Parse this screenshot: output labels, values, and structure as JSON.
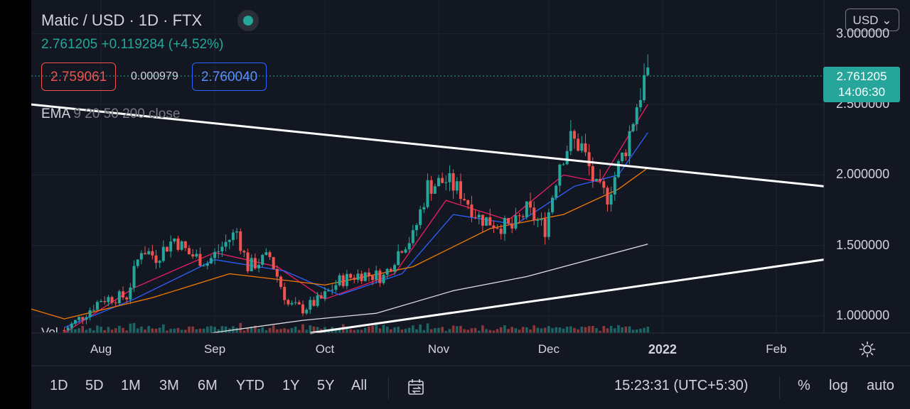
{
  "header": {
    "symbol": "Matic / USD · 1D · FTX",
    "price_line": "2.761205 +0.119284 (+4.52%)",
    "sell_price": "2.759061",
    "spread": "0.000979",
    "buy_price": "2.760040",
    "indicator_name": "EMA",
    "indicator_params": "9 20 50 200 close",
    "volume_label": "Vol",
    "currency": "USD"
  },
  "price_tag": {
    "price": "2.761205",
    "countdown": "14:06:30"
  },
  "toolbar": {
    "ranges": [
      "1D",
      "5D",
      "1M",
      "3M",
      "6M",
      "YTD",
      "1Y",
      "5Y",
      "All"
    ],
    "time": "15:23:31 (UTC+5:30)",
    "percent": "%",
    "log": "log",
    "auto": "auto"
  },
  "colors": {
    "background": "#131722",
    "up": "#26a69a",
    "down": "#ef5350",
    "ema9": "#e91e63",
    "ema20": "#2962ff",
    "ema50": "#f57c00",
    "ema200": "#e0e0e0",
    "trendline": "#ffffff"
  },
  "chart_data": {
    "type": "candlestick",
    "y_tick_labels": [
      "3.000000",
      "2.500000",
      "2.000000",
      "1.500000",
      "1.000000"
    ],
    "y_ticks": [
      3.0,
      2.5,
      2.0,
      1.5,
      1.0
    ],
    "ylim": [
      0.88,
      3.24
    ],
    "x_tick_labels": [
      "Aug",
      "Sep",
      "Oct",
      "Nov",
      "Dec",
      "2022",
      "Feb"
    ],
    "x_ticks": [
      "2021-08-01",
      "2021-09-01",
      "2021-10-01",
      "2021-11-01",
      "2021-12-01",
      "2022-01-01",
      "2022-02-01"
    ],
    "xlim": [
      "2021-07-13",
      "2022-02-14"
    ],
    "last_price": 2.761205,
    "price_anchors": [
      [
        "2021-07-22",
        0.9
      ],
      [
        "2021-07-27",
        1.0
      ],
      [
        "2021-08-01",
        1.12
      ],
      [
        "2021-08-08",
        1.14
      ],
      [
        "2021-08-12",
        1.48
      ],
      [
        "2021-08-16",
        1.42
      ],
      [
        "2021-08-21",
        1.55
      ],
      [
        "2021-08-25",
        1.44
      ],
      [
        "2021-08-30",
        1.38
      ],
      [
        "2021-09-04",
        1.52
      ],
      [
        "2021-09-07",
        1.6
      ],
      [
        "2021-09-10",
        1.35
      ],
      [
        "2021-09-16",
        1.42
      ],
      [
        "2021-09-21",
        1.08
      ],
      [
        "2021-09-25",
        1.05
      ],
      [
        "2021-09-30",
        1.12
      ],
      [
        "2021-10-05",
        1.25
      ],
      [
        "2021-10-11",
        1.3
      ],
      [
        "2021-10-17",
        1.28
      ],
      [
        "2021-10-22",
        1.5
      ],
      [
        "2021-10-25",
        1.56
      ],
      [
        "2021-10-29",
        1.92
      ],
      [
        "2021-11-03",
        1.96
      ],
      [
        "2021-11-07",
        1.88
      ],
      [
        "2021-11-12",
        1.7
      ],
      [
        "2021-11-16",
        1.66
      ],
      [
        "2021-11-21",
        1.62
      ],
      [
        "2021-11-25",
        1.75
      ],
      [
        "2021-11-30",
        1.62
      ],
      [
        "2021-12-04",
        2.1
      ],
      [
        "2021-12-07",
        2.25
      ],
      [
        "2021-12-10",
        2.2
      ],
      [
        "2021-12-14",
        1.9
      ],
      [
        "2021-12-17",
        1.85
      ],
      [
        "2021-12-22",
        2.2
      ],
      [
        "2021-12-25",
        2.5
      ],
      [
        "2021-12-28",
        2.761
      ]
    ],
    "ema_curves": {
      "ema9": [
        [
          "2021-07-22",
          0.88
        ],
        [
          "2021-08-10",
          1.2
        ],
        [
          "2021-09-01",
          1.45
        ],
        [
          "2021-09-18",
          1.35
        ],
        [
          "2021-10-01",
          1.12
        ],
        [
          "2021-10-20",
          1.3
        ],
        [
          "2021-11-03",
          1.82
        ],
        [
          "2021-11-20",
          1.68
        ],
        [
          "2021-12-05",
          2.0
        ],
        [
          "2021-12-15",
          1.95
        ],
        [
          "2021-12-28",
          2.5
        ]
      ],
      "ema20": [
        [
          "2021-07-22",
          0.92
        ],
        [
          "2021-08-10",
          1.12
        ],
        [
          "2021-09-01",
          1.4
        ],
        [
          "2021-09-20",
          1.32
        ],
        [
          "2021-10-05",
          1.15
        ],
        [
          "2021-10-22",
          1.3
        ],
        [
          "2021-11-05",
          1.72
        ],
        [
          "2021-11-22",
          1.65
        ],
        [
          "2021-12-08",
          1.92
        ],
        [
          "2021-12-20",
          2.0
        ],
        [
          "2021-12-28",
          2.3
        ]
      ],
      "ema50": [
        [
          "2021-07-13",
          1.05
        ],
        [
          "2021-07-22",
          0.98
        ],
        [
          "2021-08-15",
          1.13
        ],
        [
          "2021-09-05",
          1.3
        ],
        [
          "2021-10-01",
          1.22
        ],
        [
          "2021-10-25",
          1.35
        ],
        [
          "2021-11-15",
          1.62
        ],
        [
          "2021-12-05",
          1.72
        ],
        [
          "2021-12-20",
          1.9
        ],
        [
          "2021-12-28",
          2.05
        ]
      ],
      "ema200": [
        [
          "2021-08-31",
          0.88
        ],
        [
          "2021-09-25",
          0.97
        ],
        [
          "2021-10-15",
          1.02
        ],
        [
          "2021-11-05",
          1.18
        ],
        [
          "2021-11-25",
          1.28
        ],
        [
          "2021-12-15",
          1.42
        ],
        [
          "2021-12-28",
          1.51
        ]
      ]
    },
    "trendlines": [
      {
        "from": [
          "2021-07-13",
          2.5
        ],
        "to": [
          "2022-02-14",
          1.92
        ]
      },
      {
        "from": [
          "2021-09-27",
          0.88
        ],
        "to": [
          "2022-02-14",
          1.4
        ]
      }
    ],
    "grid": true
  }
}
